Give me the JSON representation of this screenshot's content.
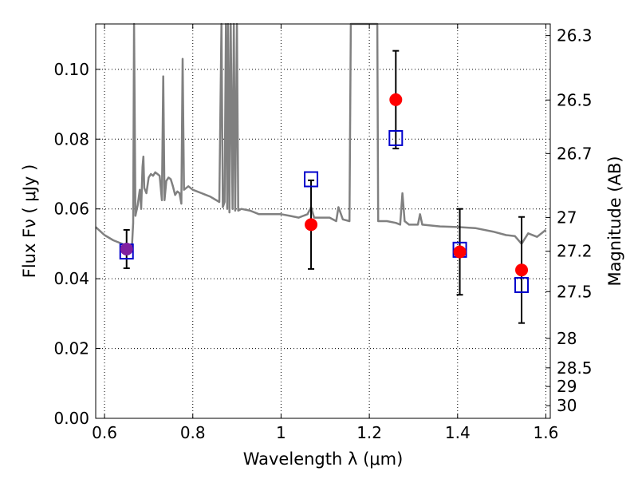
{
  "chart_data": {
    "type": "scatter",
    "xlabel": "Wavelength  λ (μm)",
    "ylabel": "Flux  Fν  ( μJy )",
    "y2label": "Magnitude (AB)",
    "xlim": [
      0.58,
      1.61
    ],
    "ylim": [
      0.0,
      0.113
    ],
    "xticks": [
      "0.6",
      "0.8",
      "1",
      "1.2",
      "1.4",
      "1.6"
    ],
    "xtick_values": [
      0.6,
      0.8,
      1.0,
      1.2,
      1.4,
      1.6
    ],
    "yticks": [
      "0.00",
      "0.02",
      "0.04",
      "0.06",
      "0.08",
      "0.10"
    ],
    "ytick_values": [
      0.0,
      0.02,
      0.04,
      0.06,
      0.08,
      0.1
    ],
    "y2ticks": [
      "26.3",
      "26.5",
      "26.7",
      "27",
      "27.2",
      "27.5",
      "28",
      "28.5",
      "29",
      "30"
    ],
    "y2tick_values": [
      26.3,
      26.5,
      26.7,
      27.0,
      27.2,
      27.5,
      28.0,
      28.5,
      29.0,
      30.0
    ],
    "grid": true,
    "colors": {
      "observed": "#ff0000",
      "model": "#0000cc",
      "spectrum": "#808080",
      "overlap": "#8020a0"
    },
    "series": [
      {
        "kind": "points-with-errorbars",
        "marker": "filled-circle",
        "x": [
          0.65,
          1.068,
          1.26,
          1.405,
          1.545
        ],
        "y": [
          0.0485,
          0.0555,
          0.0913,
          0.0477,
          0.0425
        ],
        "yerr": [
          0.0055,
          0.0127,
          0.014,
          0.0123,
          0.0152
        ]
      },
      {
        "kind": "points",
        "marker": "open-square",
        "x": [
          0.65,
          1.068,
          1.26,
          1.405,
          1.545
        ],
        "y": [
          0.0478,
          0.0685,
          0.0803,
          0.0483,
          0.0382
        ]
      },
      {
        "kind": "line",
        "x": [
          0.58,
          0.6,
          0.62,
          0.64,
          0.655,
          0.662,
          0.665,
          0.667,
          0.67,
          0.675,
          0.68,
          0.683,
          0.686,
          0.688,
          0.69,
          0.695,
          0.7,
          0.705,
          0.71,
          0.715,
          0.72,
          0.725,
          0.73,
          0.733,
          0.736,
          0.74,
          0.745,
          0.75,
          0.755,
          0.76,
          0.765,
          0.77,
          0.774,
          0.777,
          0.78,
          0.79,
          0.8,
          0.82,
          0.84,
          0.86,
          0.865,
          0.868,
          0.872,
          0.875,
          0.878,
          0.88,
          0.883,
          0.886,
          0.89,
          0.893,
          0.896,
          0.9,
          0.903,
          0.91,
          0.93,
          0.95,
          0.97,
          1.0,
          1.02,
          1.04,
          1.06,
          1.068,
          1.075,
          1.09,
          1.11,
          1.125,
          1.13,
          1.14,
          1.155,
          1.158,
          1.16,
          1.215,
          1.218,
          1.22,
          1.24,
          1.26,
          1.27,
          1.275,
          1.28,
          1.29,
          1.31,
          1.315,
          1.32,
          1.36,
          1.4,
          1.44,
          1.48,
          1.51,
          1.53,
          1.545,
          1.56,
          1.58,
          1.6
        ],
        "y": [
          0.0548,
          0.0525,
          0.051,
          0.05,
          0.0493,
          0.049,
          0.056,
          0.113,
          0.058,
          0.061,
          0.0655,
          0.06,
          0.072,
          0.075,
          0.066,
          0.0645,
          0.069,
          0.07,
          0.0695,
          0.0705,
          0.07,
          0.0695,
          0.0625,
          0.098,
          0.0625,
          0.068,
          0.069,
          0.0685,
          0.0665,
          0.064,
          0.065,
          0.0645,
          0.0615,
          0.103,
          0.0655,
          0.0665,
          0.0655,
          0.0645,
          0.0635,
          0.062,
          0.113,
          0.0605,
          0.062,
          0.113,
          0.06,
          0.113,
          0.059,
          0.113,
          0.06,
          0.113,
          0.0595,
          0.113,
          0.0595,
          0.06,
          0.0595,
          0.0585,
          0.0585,
          0.0585,
          0.058,
          0.0575,
          0.0585,
          0.0605,
          0.0575,
          0.0575,
          0.0575,
          0.0565,
          0.0605,
          0.057,
          0.0565,
          0.113,
          0.113,
          0.113,
          0.113,
          0.0565,
          0.0565,
          0.056,
          0.0555,
          0.0645,
          0.0565,
          0.0555,
          0.0555,
          0.0585,
          0.0555,
          0.055,
          0.0548,
          0.0545,
          0.0535,
          0.0525,
          0.0522,
          0.05,
          0.053,
          0.052,
          0.054
        ]
      }
    ]
  }
}
